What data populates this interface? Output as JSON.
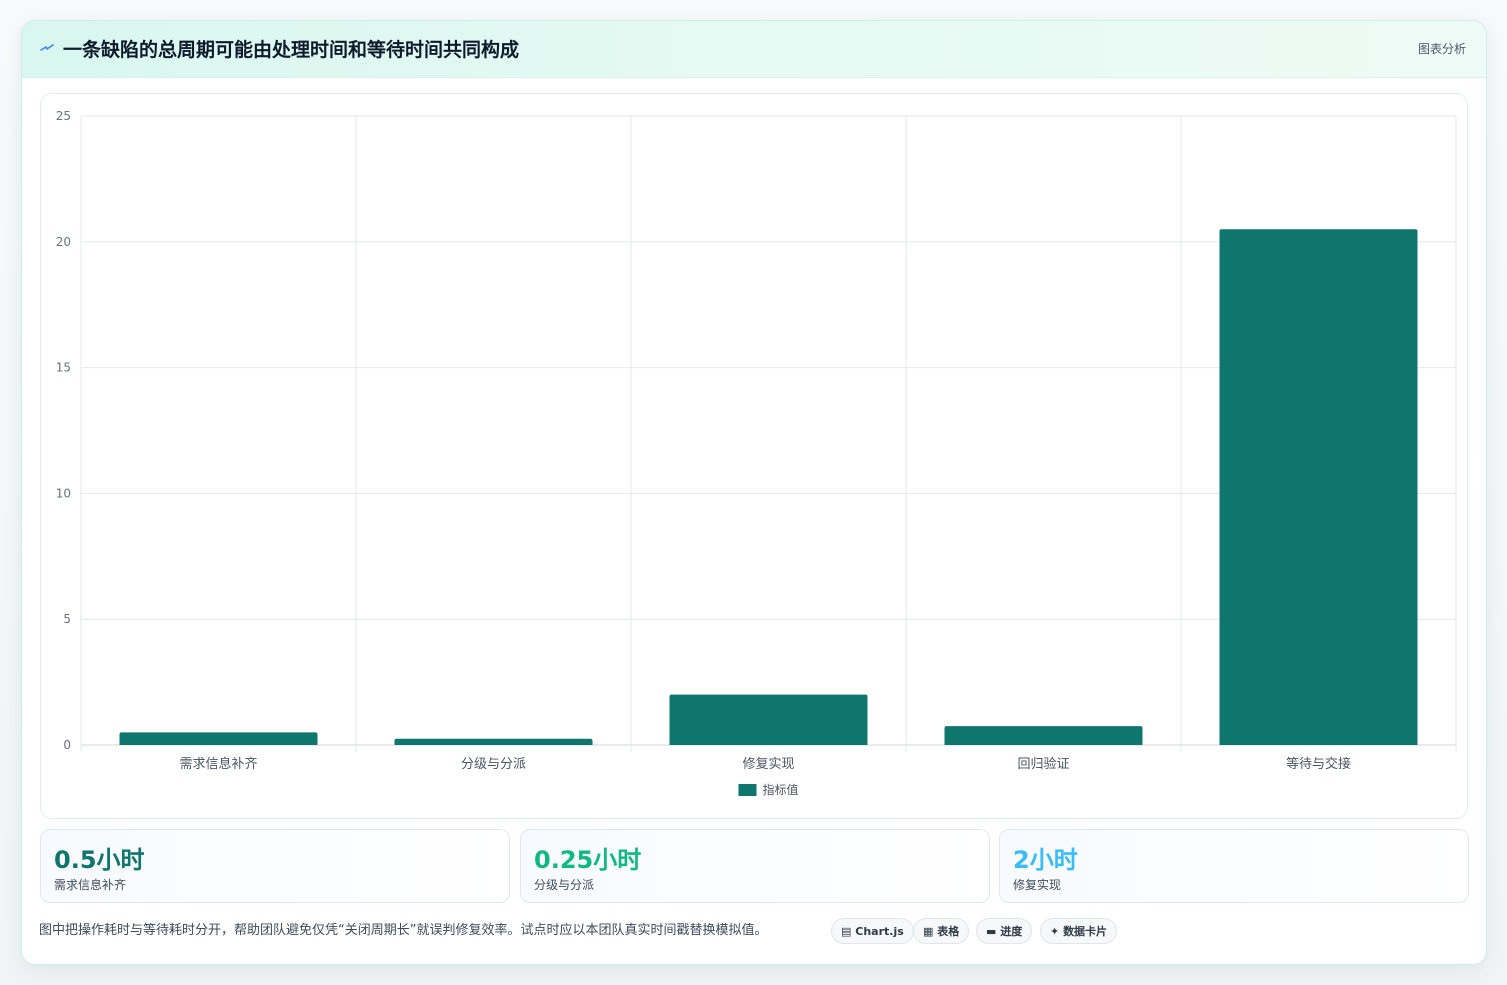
{
  "header": {
    "title": "一条缺陷的总周期可能由处理时间和等待时间共同构成",
    "tag": "图表分析",
    "icon": "spark-icon"
  },
  "colors": {
    "bar": "#0f766e",
    "stat1": "#0f766e",
    "stat2": "#10b981",
    "stat3": "#38bdf8",
    "grid": "#e5e7eb",
    "axis_text": "#6b7280"
  },
  "chart_data": {
    "type": "bar",
    "categories": [
      "需求信息补齐",
      "分级与分派",
      "修复实现",
      "回归验证",
      "等待与交接"
    ],
    "series": [
      {
        "name": "指标值",
        "values": [
          0.5,
          0.25,
          2,
          0.75,
          20.5
        ]
      }
    ],
    "y_ticks": [
      "0",
      "5",
      "10",
      "15",
      "20",
      "25"
    ],
    "ylim": [
      0,
      25
    ],
    "grid": true,
    "legend_position": "bottom"
  },
  "stats": [
    {
      "value": "0.5小时",
      "label": "需求信息补齐"
    },
    {
      "value": "0.25小时",
      "label": "分级与分派"
    },
    {
      "value": "2小时",
      "label": "修复实现"
    }
  ],
  "footnote": "图中把操作耗时与等待耗时分开，帮助团队避免仅凭“关闭周期长”就误判修复效率。试点时应以本团队真实时间戳替换模拟值。",
  "tools": [
    {
      "icon": "chart-icon",
      "label": "Chart.js"
    },
    {
      "icon": "table-icon",
      "label": "表格"
    },
    {
      "icon": "progress-icon",
      "label": "进度"
    },
    {
      "icon": "sparkle-icon",
      "label": "数据卡片"
    }
  ]
}
